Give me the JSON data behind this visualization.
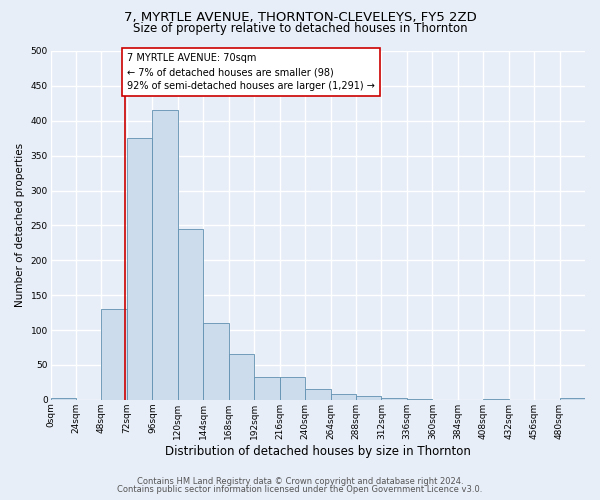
{
  "title": "7, MYRTLE AVENUE, THORNTON-CLEVELEYS, FY5 2ZD",
  "subtitle": "Size of property relative to detached houses in Thornton",
  "xlabel": "Distribution of detached houses by size in Thornton",
  "ylabel": "Number of detached properties",
  "footnote1": "Contains HM Land Registry data © Crown copyright and database right 2024.",
  "footnote2": "Contains public sector information licensed under the Open Government Licence v3.0.",
  "bar_edges": [
    0,
    24,
    48,
    72,
    96,
    120,
    144,
    168,
    192,
    216,
    240,
    264,
    288,
    312,
    336,
    360,
    384,
    408,
    432,
    456,
    480,
    504
  ],
  "bar_heights": [
    3,
    0,
    130,
    375,
    415,
    245,
    110,
    65,
    33,
    33,
    15,
    8,
    6,
    2,
    1,
    0,
    0,
    1,
    0,
    0,
    3
  ],
  "bar_color": "#ccdcec",
  "bar_edgecolor": "#6090b0",
  "property_size": 70,
  "vline_color": "#cc0000",
  "annotation_text": "7 MYRTLE AVENUE: 70sqm\n← 7% of detached houses are smaller (98)\n92% of semi-detached houses are larger (1,291) →",
  "annotation_box_color": "#ffffff",
  "annotation_box_edgecolor": "#cc0000",
  "xlim": [
    0,
    504
  ],
  "ylim": [
    0,
    500
  ],
  "yticks": [
    0,
    50,
    100,
    150,
    200,
    250,
    300,
    350,
    400,
    450,
    500
  ],
  "xtick_labels": [
    "0sqm",
    "24sqm",
    "48sqm",
    "72sqm",
    "96sqm",
    "120sqm",
    "144sqm",
    "168sqm",
    "192sqm",
    "216sqm",
    "240sqm",
    "264sqm",
    "288sqm",
    "312sqm",
    "336sqm",
    "360sqm",
    "384sqm",
    "408sqm",
    "432sqm",
    "456sqm",
    "480sqm"
  ],
  "xtick_positions": [
    0,
    24,
    48,
    72,
    96,
    120,
    144,
    168,
    192,
    216,
    240,
    264,
    288,
    312,
    336,
    360,
    384,
    408,
    432,
    456,
    480
  ],
  "page_bg_color": "#e8eef8",
  "plot_bg_color": "#e8eef8",
  "grid_color": "#ffffff",
  "title_fontsize": 9.5,
  "subtitle_fontsize": 8.5,
  "xlabel_fontsize": 8.5,
  "ylabel_fontsize": 7.5,
  "tick_fontsize": 6.5,
  "annotation_fontsize": 7,
  "footnote_fontsize": 6
}
